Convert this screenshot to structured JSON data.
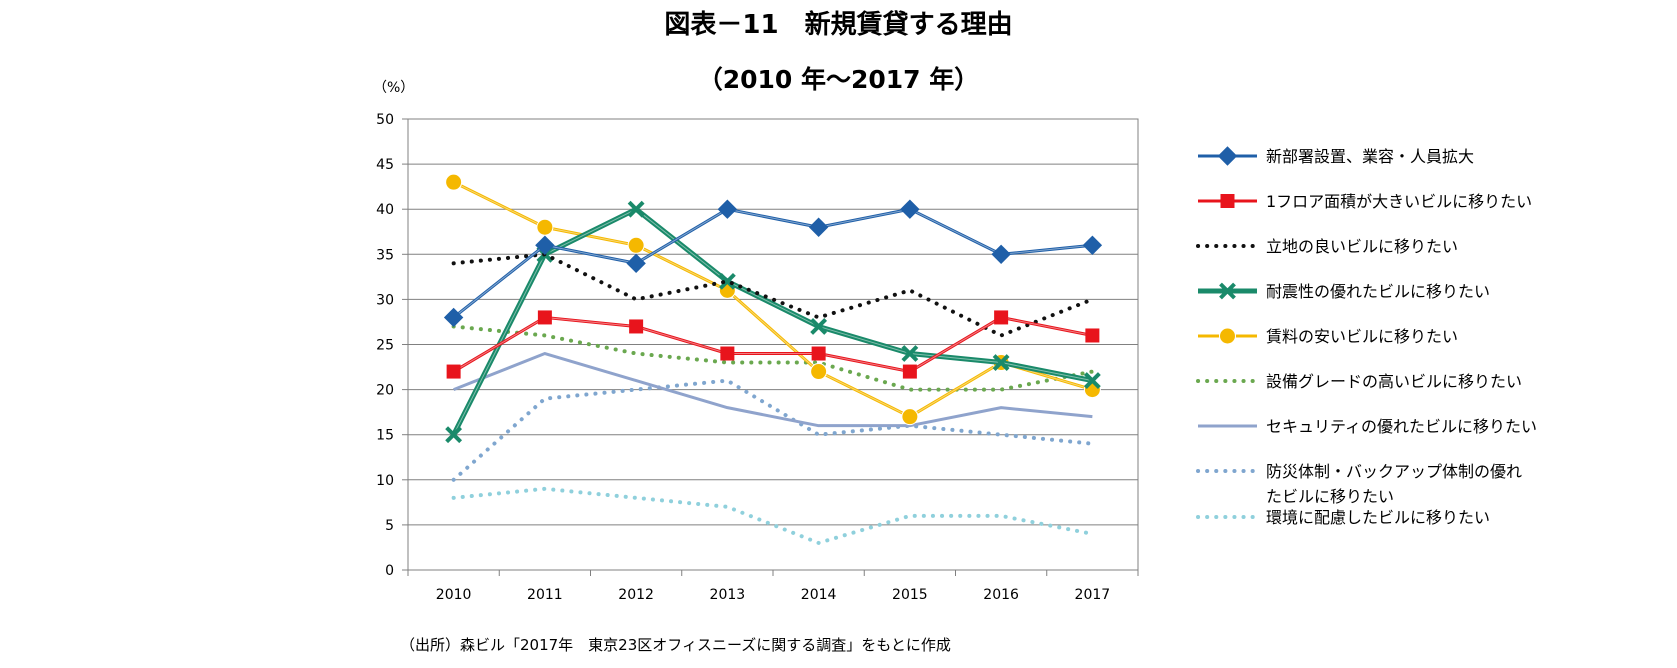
{
  "header": {
    "title": "図表－11　新規賃貸する理由",
    "subtitle": "（2010 年～2017 年）"
  },
  "source_note": "（出所）森ビル「2017年　東京23区オフィスニーズに関する調査」をもとに作成",
  "chart_data": {
    "type": "line",
    "title": "図表－11　新規賃貸する理由",
    "subtitle": "（2010 年～2017 年）",
    "ylabel": "（%）",
    "xlabel": "",
    "ylim": [
      0,
      50
    ],
    "yticks": [
      0,
      5,
      10,
      15,
      20,
      25,
      30,
      35,
      40,
      45,
      50
    ],
    "categories": [
      "2010",
      "2011",
      "2012",
      "2013",
      "2014",
      "2015",
      "2016",
      "2017"
    ],
    "grid": true,
    "legend_position": "right",
    "series": [
      {
        "name": "新部署設置、業容・人員拡大",
        "values": [
          28,
          36,
          34,
          40,
          38,
          40,
          35,
          36
        ],
        "color": "#1f5fa8",
        "style": "solid",
        "marker": "diamond",
        "width": 3
      },
      {
        "name": "1フロア面積が大きいビルに移りたい",
        "values": [
          22,
          28,
          27,
          24,
          24,
          22,
          28,
          26
        ],
        "color": "#e8141c",
        "style": "solid",
        "marker": "square",
        "width": 3
      },
      {
        "name": "立地の良いビルに移りたい",
        "values": [
          34,
          35,
          30,
          32,
          28,
          31,
          26,
          30
        ],
        "color": "#111111",
        "style": "dotted",
        "marker": "none",
        "width": 4
      },
      {
        "name": "耐震性の優れたビルに移りたい",
        "values": [
          15,
          35,
          40,
          32,
          27,
          24,
          23,
          21
        ],
        "color": "#1a8a6a",
        "style": "solid",
        "marker": "x",
        "width": 5
      },
      {
        "name": "賃料の安いビルに移りたい",
        "values": [
          43,
          38,
          36,
          31,
          22,
          17,
          23,
          20
        ],
        "color": "#f5b800",
        "style": "solid",
        "marker": "circle",
        "width": 3
      },
      {
        "name": "設備グレードの高いビルに移りたい",
        "values": [
          27,
          26,
          24,
          23,
          23,
          20,
          20,
          22
        ],
        "color": "#6aa84f",
        "style": "dotted",
        "marker": "none",
        "width": 4
      },
      {
        "name": "セキュリティの優れたビルに移りたい",
        "values": [
          20,
          24,
          21,
          18,
          16,
          16,
          18,
          17
        ],
        "color": "#8fa3cc",
        "style": "solid",
        "marker": "none",
        "width": 3
      },
      {
        "name": "防災体制・バックアップ体制の優れたビルに移りたい",
        "values": [
          10,
          19,
          20,
          21,
          15,
          16,
          15,
          14
        ],
        "color": "#7fa6cf",
        "style": "dotted",
        "marker": "none",
        "width": 4
      },
      {
        "name": "環境に配慮したビルに移りたい",
        "values": [
          8,
          9,
          8,
          7,
          3,
          6,
          6,
          4
        ],
        "color": "#8fd0dc",
        "style": "dotted",
        "marker": "none",
        "width": 4
      }
    ]
  }
}
